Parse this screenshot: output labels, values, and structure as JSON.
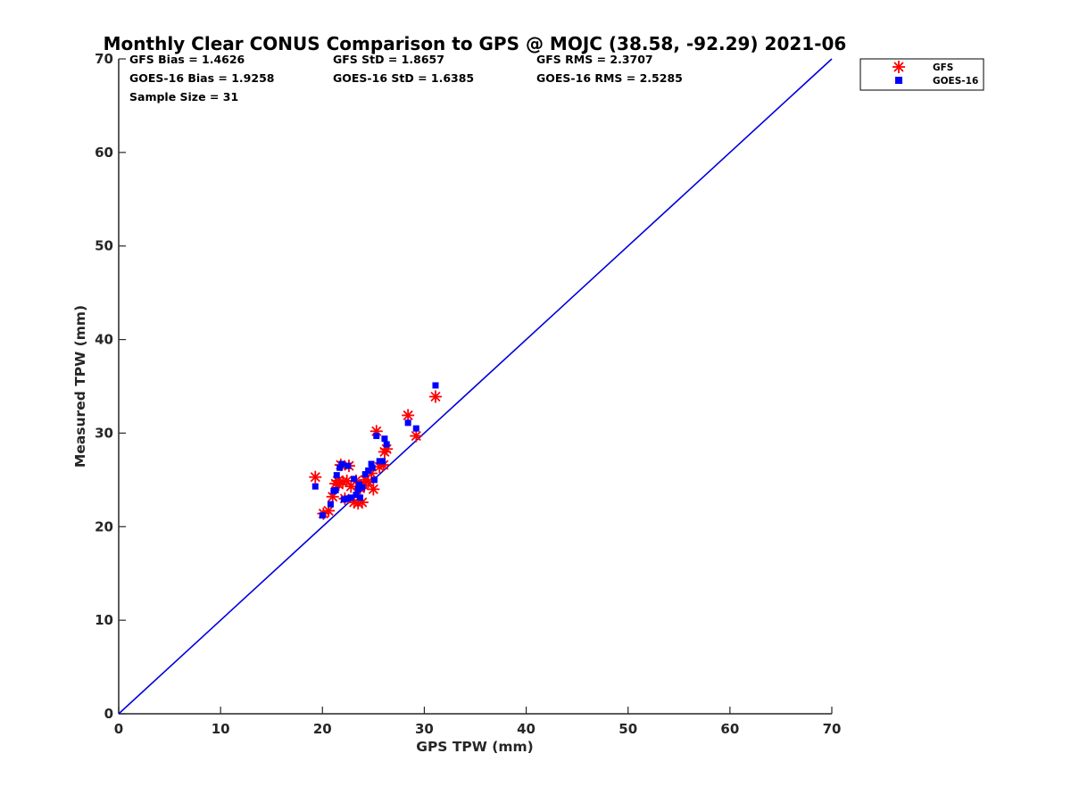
{
  "chart_data": {
    "type": "scatter",
    "title": "Monthly Clear CONUS Comparison to GPS @ MOJC (38.58, -92.29) 2021-06",
    "xlabel": "GPS TPW (mm)",
    "ylabel": "Measured TPW (mm)",
    "xlim": [
      0,
      70
    ],
    "ylim": [
      0,
      70
    ],
    "xticks": [
      "0",
      "10",
      "20",
      "30",
      "40",
      "50",
      "60",
      "70"
    ],
    "yticks": [
      "0",
      "10",
      "20",
      "30",
      "40",
      "50",
      "60",
      "70"
    ],
    "grid": false,
    "legend_position": "top-right",
    "stats": [
      "GFS Bias = 1.4626",
      "GFS StD = 1.8657",
      "GFS RMS = 2.3707",
      "GOES-16 Bias = 1.9258",
      "GOES-16 StD = 1.6385",
      "GOES-16 RMS = 2.5285",
      "Sample Size = 31"
    ],
    "reference_line": {
      "x": [
        0,
        70
      ],
      "y": [
        0,
        70
      ],
      "color": "#0000dd"
    },
    "series": [
      {
        "name": "GFS",
        "marker": "asterisk",
        "color": "#ff0000",
        "points": [
          [
            19.3,
            25.3
          ],
          [
            20.1,
            21.4
          ],
          [
            20.6,
            21.7
          ],
          [
            21.0,
            23.2
          ],
          [
            21.3,
            24.6
          ],
          [
            21.6,
            24.5
          ],
          [
            21.8,
            26.6
          ],
          [
            22.0,
            24.8
          ],
          [
            22.2,
            23.0
          ],
          [
            22.6,
            26.5
          ],
          [
            22.8,
            24.3
          ],
          [
            23.1,
            22.6
          ],
          [
            23.3,
            24.9
          ],
          [
            23.5,
            22.5
          ],
          [
            23.9,
            22.6
          ],
          [
            24.2,
            25.0
          ],
          [
            24.5,
            24.8
          ],
          [
            24.8,
            25.7
          ],
          [
            25.0,
            24.0
          ],
          [
            25.3,
            30.2
          ],
          [
            25.6,
            26.4
          ],
          [
            26.0,
            26.6
          ],
          [
            26.1,
            28.0
          ],
          [
            26.3,
            28.3
          ],
          [
            28.4,
            31.9
          ],
          [
            29.2,
            29.7
          ],
          [
            31.1,
            33.9
          ],
          [
            22.4,
            24.9
          ],
          [
            23.7,
            24.1
          ],
          [
            24.1,
            24.4
          ],
          [
            21.5,
            24.9
          ]
        ]
      },
      {
        "name": "GOES-16",
        "marker": "square",
        "color": "#0000ff",
        "points": [
          [
            19.3,
            24.3
          ],
          [
            20.0,
            21.2
          ],
          [
            20.8,
            22.4
          ],
          [
            21.1,
            23.8
          ],
          [
            21.4,
            25.5
          ],
          [
            21.7,
            26.3
          ],
          [
            21.9,
            26.7
          ],
          [
            22.1,
            22.9
          ],
          [
            22.5,
            26.5
          ],
          [
            22.8,
            23.1
          ],
          [
            23.1,
            25.1
          ],
          [
            23.3,
            23.4
          ],
          [
            23.5,
            24.0
          ],
          [
            23.7,
            23.1
          ],
          [
            23.9,
            24.2
          ],
          [
            24.2,
            25.6
          ],
          [
            24.5,
            26.0
          ],
          [
            24.8,
            26.7
          ],
          [
            25.1,
            25.0
          ],
          [
            25.3,
            29.7
          ],
          [
            25.6,
            27.0
          ],
          [
            25.9,
            27.0
          ],
          [
            26.1,
            29.4
          ],
          [
            26.3,
            28.8
          ],
          [
            28.4,
            31.1
          ],
          [
            29.2,
            30.5
          ],
          [
            31.1,
            35.1
          ],
          [
            22.4,
            23.0
          ],
          [
            23.6,
            24.5
          ],
          [
            24.9,
            26.3
          ],
          [
            21.3,
            23.9
          ]
        ]
      }
    ]
  }
}
